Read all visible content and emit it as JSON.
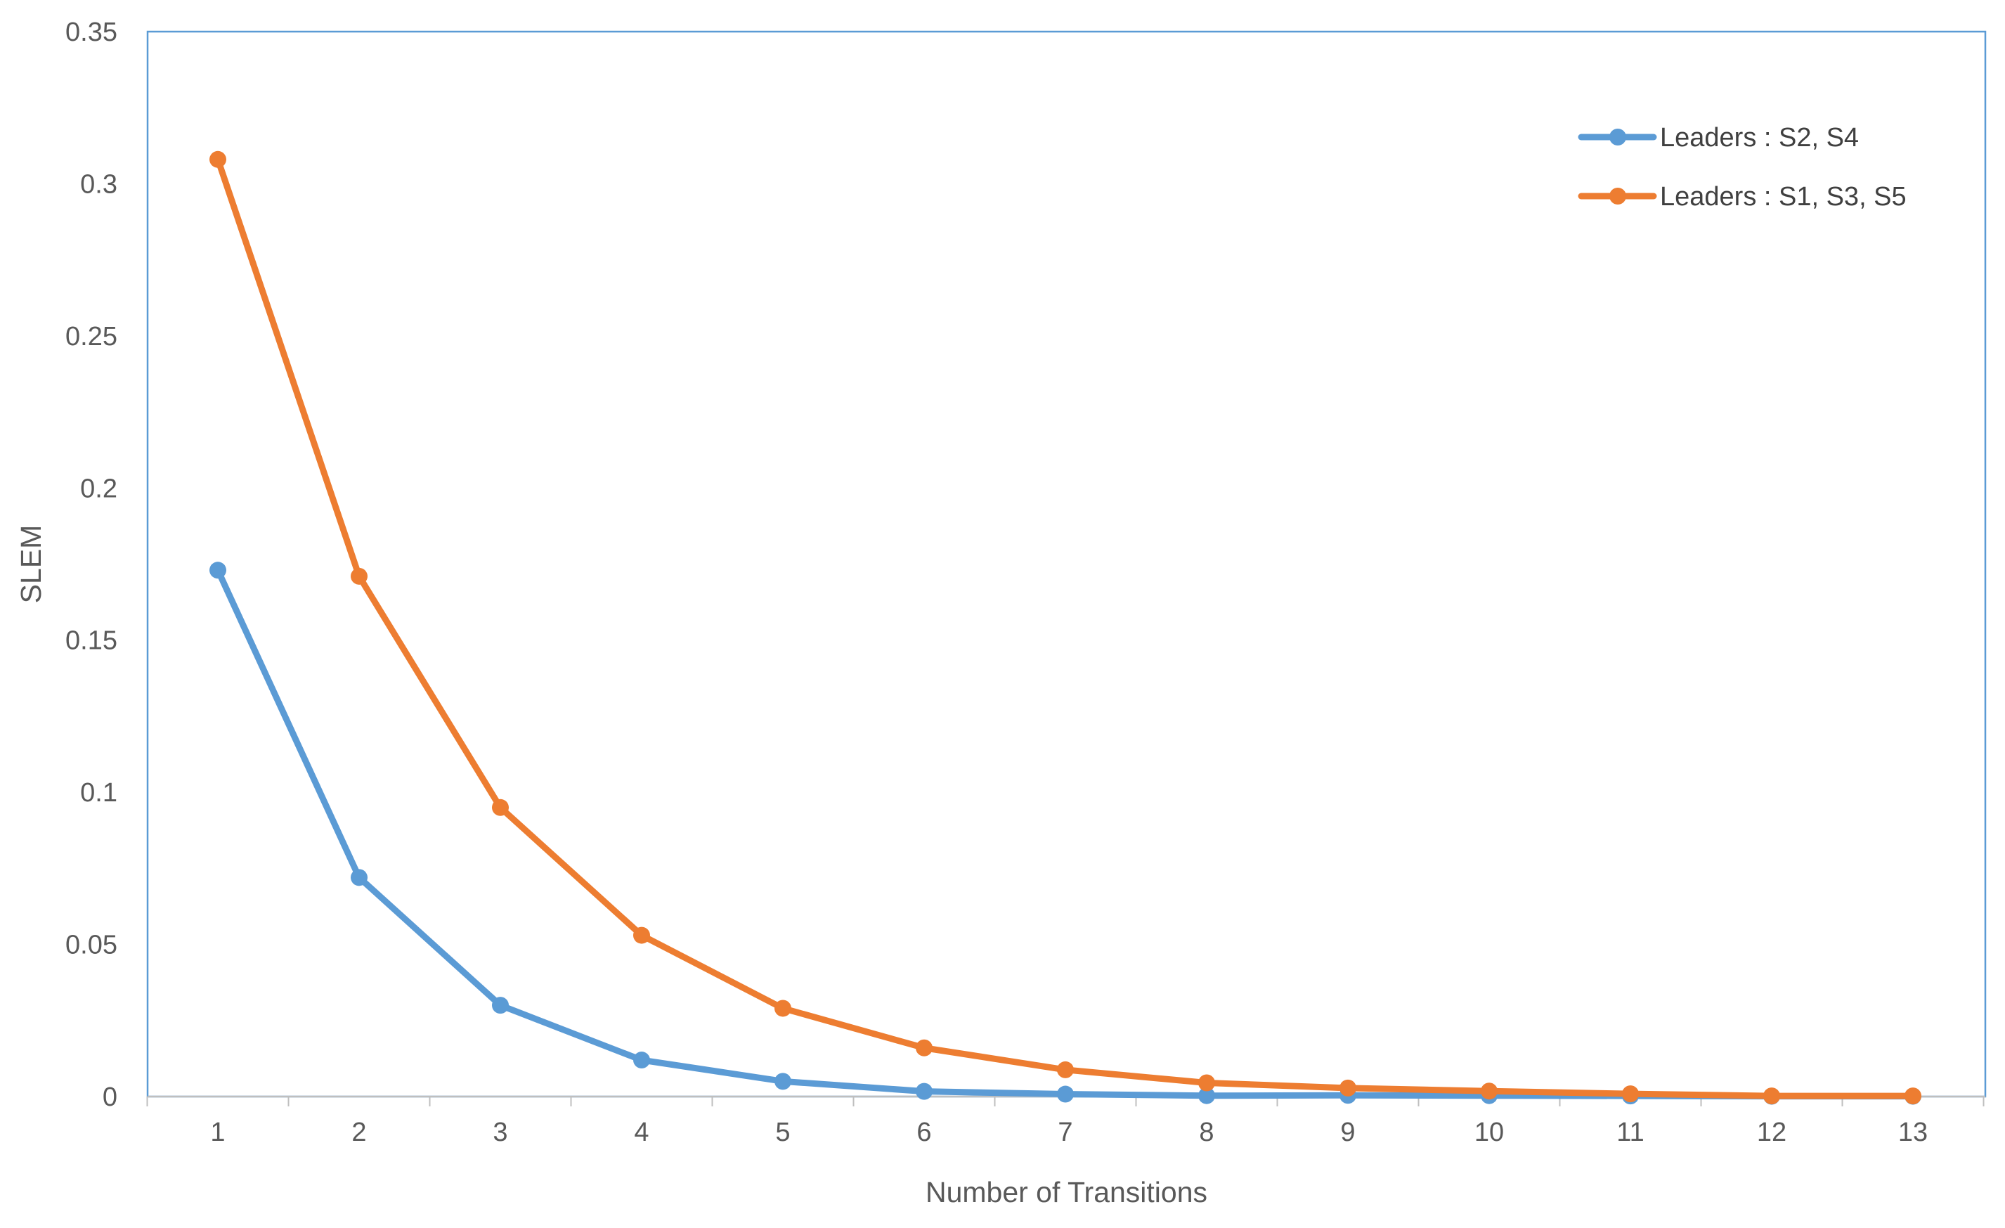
{
  "chart_data": {
    "type": "line",
    "title": "",
    "xlabel": "Number of Transitions",
    "ylabel": "SLEM",
    "x": [
      1,
      2,
      3,
      4,
      5,
      6,
      7,
      8,
      9,
      10,
      11,
      12,
      13
    ],
    "categories": [
      "1",
      "2",
      "3",
      "4",
      "5",
      "6",
      "7",
      "8",
      "9",
      "10",
      "11",
      "12",
      "13"
    ],
    "ylim": [
      0,
      0.35
    ],
    "yticks": [
      "0",
      "0.05",
      "0.1",
      "0.15",
      "0.2",
      "0.25",
      "0.3",
      "0.35"
    ],
    "yticks_values": [
      0,
      0.05,
      0.1,
      0.15,
      0.2,
      0.25,
      0.3,
      0.35
    ],
    "grid": false,
    "legend_position": "top-right",
    "series": [
      {
        "name": "Leaders : S2, S4",
        "color": "#5B9BD5",
        "values": [
          0.173,
          0.072,
          0.03,
          0.012,
          0.005,
          0.0017,
          0.0008,
          0.0003,
          0.0004,
          0.0003,
          0.0002,
          0.0001,
          0.0001
        ]
      },
      {
        "name": "Leaders : S1, S3, S5",
        "color": "#ED7D31",
        "values": [
          0.308,
          0.171,
          0.095,
          0.053,
          0.029,
          0.016,
          0.0088,
          0.0045,
          0.0028,
          0.0018,
          0.0009,
          0.0002,
          0.0002
        ]
      }
    ]
  },
  "colors": {
    "plot_border": "#5B9BD5",
    "axis_line": "#BFBFBF",
    "text": "#595959"
  }
}
